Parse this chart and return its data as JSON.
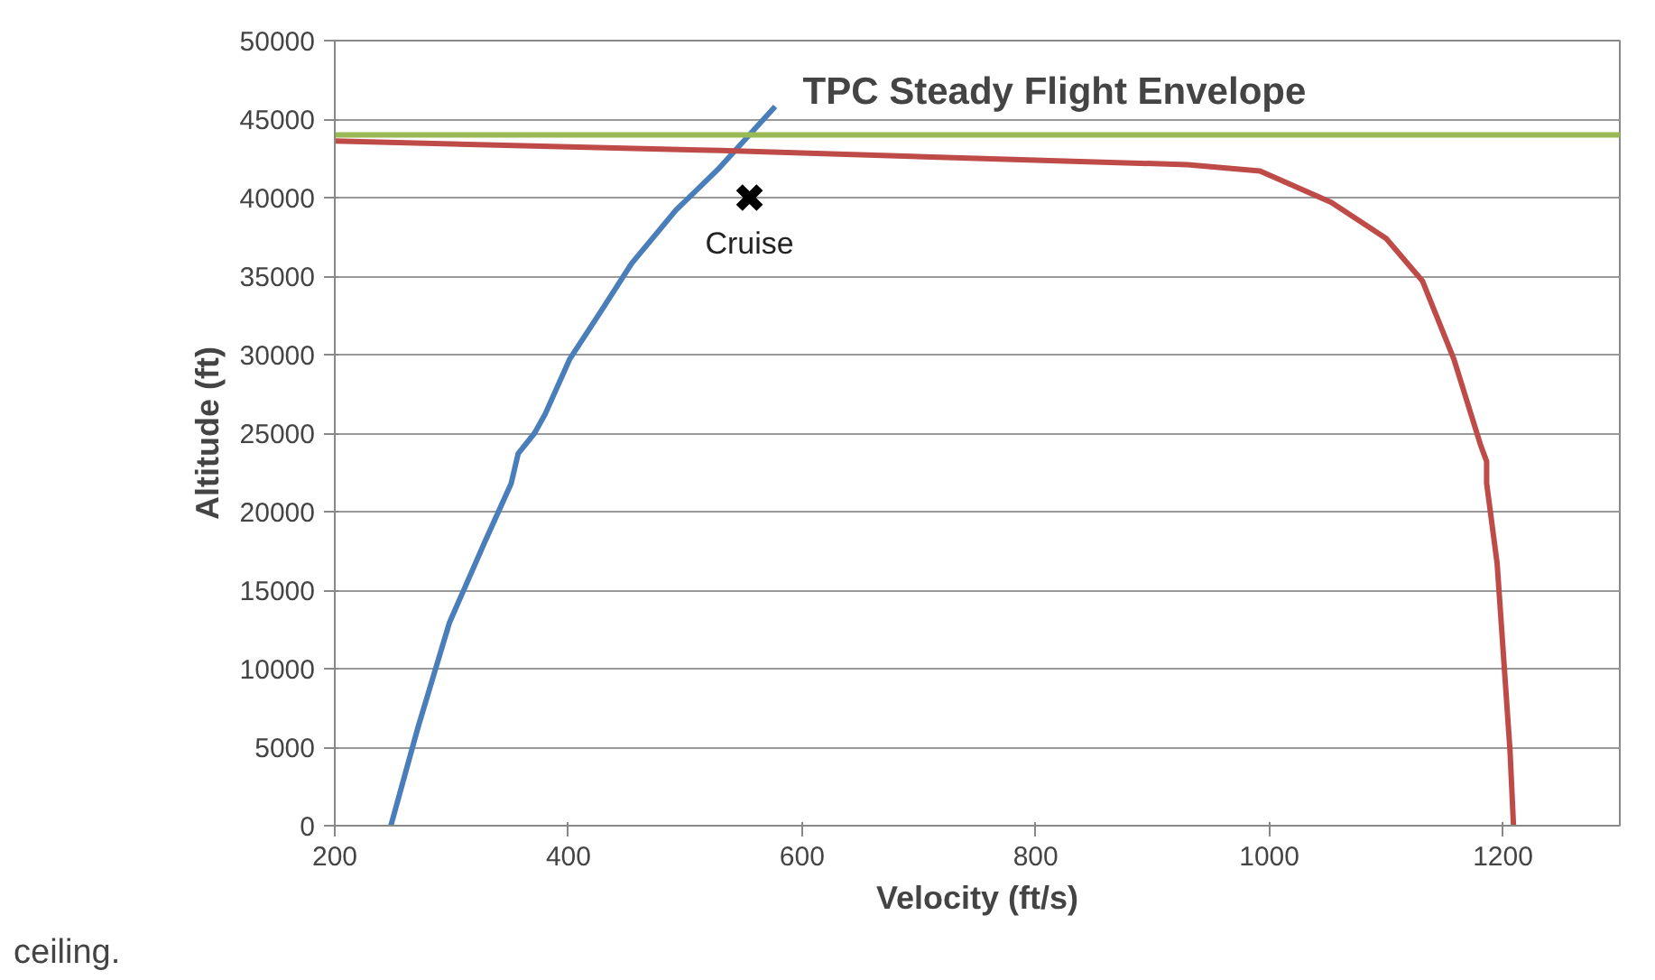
{
  "chart_data": {
    "type": "line",
    "title": "TPC Steady Flight Envelope",
    "xlabel": "Velocity (ft/s)",
    "ylabel": "Altitude (ft)",
    "xlim": [
      200,
      1300
    ],
    "xticks": [
      200,
      400,
      600,
      800,
      1000,
      1200
    ],
    "ylim": [
      0,
      50000
    ],
    "yticks": [
      0,
      5000,
      10000,
      15000,
      20000,
      25000,
      30000,
      35000,
      40000,
      45000,
      50000
    ],
    "grid": "y",
    "line_style": "solid",
    "annotations": [
      "ceiling."
    ],
    "series": [
      {
        "color": "#4a7ebb",
        "x": [
          248,
          271,
          298,
          328,
          351,
          357,
          371,
          380,
          401,
          429,
          454,
          492,
          528,
          577
        ],
        "values": [
          0,
          6200,
          12900,
          18000,
          21800,
          23700,
          25000,
          26200,
          29700,
          32900,
          35800,
          39200,
          41800,
          45800
        ]
      },
      {
        "color": "#be4b48",
        "x": [
          200,
          531,
          838,
          930,
          992,
          1053,
          1100,
          1131,
          1158,
          1181,
          1186,
          1186,
          1195,
          1201,
          1206,
          1209
        ],
        "values": [
          43600,
          43000,
          42300,
          42100,
          41700,
          39700,
          37400,
          34700,
          29700,
          24200,
          23200,
          21800,
          16700,
          10200,
          4800,
          0
        ]
      },
      {
        "color": "#98b954",
        "x": [
          200,
          1300
        ],
        "values": [
          44000,
          44000
        ]
      },
      {
        "type": "scatter",
        "name": "Cruise",
        "marker": "cross",
        "color": "#000000",
        "x": [
          555
        ],
        "values": [
          40000
        ]
      }
    ]
  }
}
